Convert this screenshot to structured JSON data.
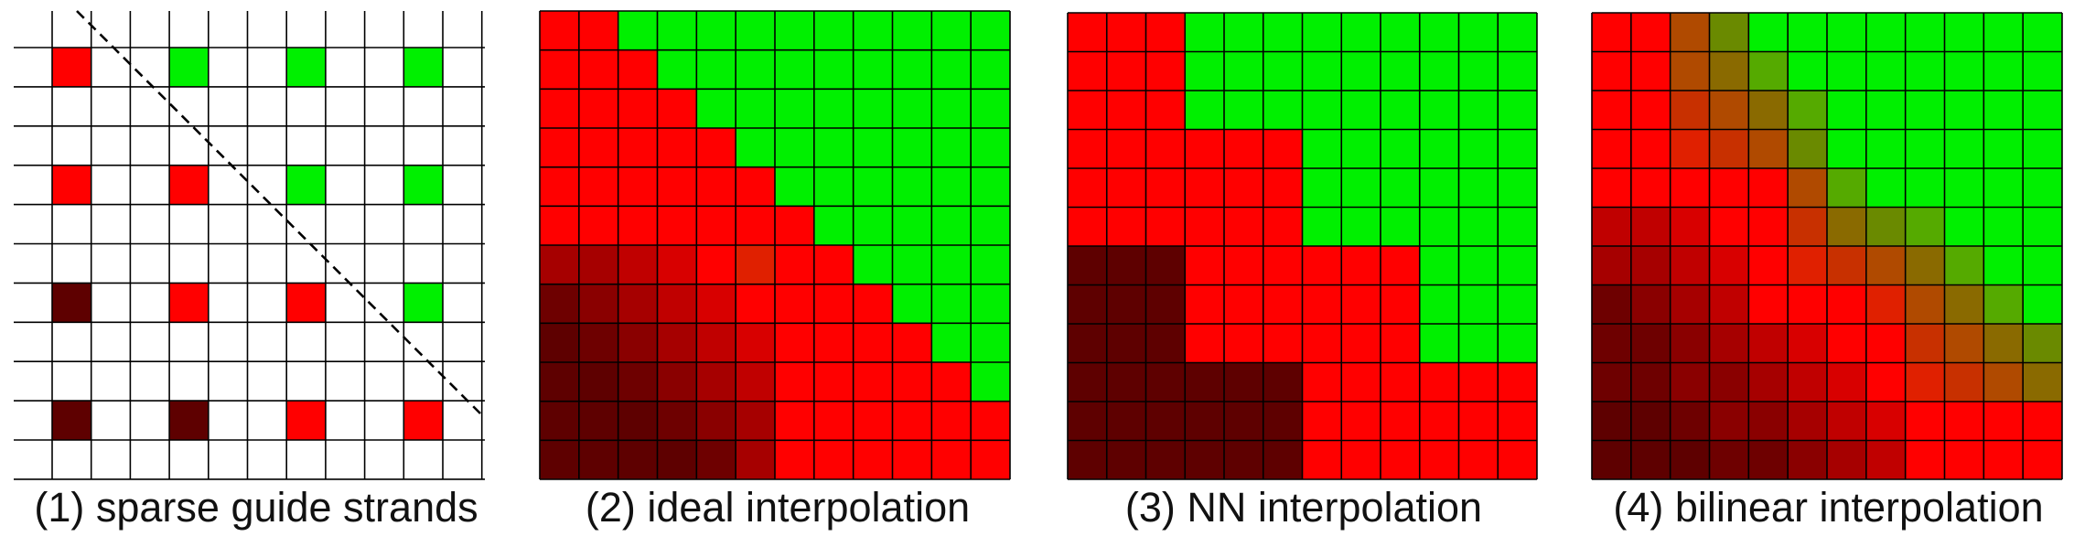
{
  "palette": {
    "dark": "#5e0000",
    "dark2": "#6e0000",
    "dark3": "#8a0000",
    "mid1": "#a60000",
    "mid2": "#c00000",
    "mid3": "#d80000",
    "red": "#ff0000",
    "orange_red": "#e02000",
    "orange": "#c83000",
    "brown": "#b04a00",
    "olive": "#8a6a00",
    "olive2": "#6a8a00",
    "lime": "#55aa00",
    "green": "#00f000",
    "white": "#ffffff"
  },
  "panels": [
    {
      "id": "sparse",
      "caption": "(1) sparse guide strands",
      "rows": 12,
      "cols": 12,
      "guides": [
        {
          "row": 1,
          "col": 1,
          "color": "red"
        },
        {
          "row": 1,
          "col": 4,
          "color": "green"
        },
        {
          "row": 1,
          "col": 7,
          "color": "green"
        },
        {
          "row": 1,
          "col": 10,
          "color": "green"
        },
        {
          "row": 4,
          "col": 1,
          "color": "red"
        },
        {
          "row": 4,
          "col": 4,
          "color": "red"
        },
        {
          "row": 4,
          "col": 7,
          "color": "green"
        },
        {
          "row": 4,
          "col": 10,
          "color": "green"
        },
        {
          "row": 7,
          "col": 1,
          "color": "dark"
        },
        {
          "row": 7,
          "col": 4,
          "color": "red"
        },
        {
          "row": 7,
          "col": 7,
          "color": "red"
        },
        {
          "row": 7,
          "col": 10,
          "color": "green"
        },
        {
          "row": 10,
          "col": 1,
          "color": "dark"
        },
        {
          "row": 10,
          "col": 4,
          "color": "dark"
        },
        {
          "row": 10,
          "col": 7,
          "color": "red"
        },
        {
          "row": 10,
          "col": 10,
          "color": "red"
        }
      ]
    },
    {
      "id": "ideal",
      "caption": "(2) ideal interpolation",
      "rows": 12,
      "cols": 12,
      "cells": [
        [
          "red",
          "red",
          "green",
          "green",
          "green",
          "green",
          "green",
          "green",
          "green",
          "green",
          "green",
          "green"
        ],
        [
          "red",
          "red",
          "red",
          "green",
          "green",
          "green",
          "green",
          "green",
          "green",
          "green",
          "green",
          "green"
        ],
        [
          "red",
          "red",
          "red",
          "red",
          "green",
          "green",
          "green",
          "green",
          "green",
          "green",
          "green",
          "green"
        ],
        [
          "red",
          "red",
          "red",
          "red",
          "red",
          "green",
          "green",
          "green",
          "green",
          "green",
          "green",
          "green"
        ],
        [
          "red",
          "red",
          "red",
          "red",
          "red",
          "red",
          "green",
          "green",
          "green",
          "green",
          "green",
          "green"
        ],
        [
          "red",
          "red",
          "red",
          "red",
          "red",
          "red",
          "red",
          "green",
          "green",
          "green",
          "green",
          "green"
        ],
        [
          "mid1",
          "mid1",
          "mid2",
          "mid3",
          "red",
          "orange_red",
          "red",
          "red",
          "green",
          "green",
          "green",
          "green"
        ],
        [
          "dark2",
          "dark3",
          "mid1",
          "mid2",
          "mid3",
          "red",
          "red",
          "red",
          "red",
          "green",
          "green",
          "green"
        ],
        [
          "dark",
          "dark2",
          "dark3",
          "mid1",
          "mid2",
          "mid3",
          "red",
          "red",
          "red",
          "red",
          "green",
          "green"
        ],
        [
          "dark",
          "dark",
          "dark2",
          "dark3",
          "mid1",
          "mid2",
          "red",
          "red",
          "red",
          "red",
          "red",
          "green"
        ],
        [
          "dark",
          "dark",
          "dark",
          "dark2",
          "dark3",
          "mid1",
          "red",
          "red",
          "red",
          "red",
          "red",
          "red"
        ],
        [
          "dark",
          "dark",
          "dark",
          "dark",
          "dark2",
          "mid1",
          "red",
          "red",
          "red",
          "red",
          "red",
          "red"
        ]
      ]
    },
    {
      "id": "nn",
      "caption": "(3) NN interpolation",
      "rows": 12,
      "cols": 12,
      "cells": [
        [
          "red",
          "red",
          "red",
          "green",
          "green",
          "green",
          "green",
          "green",
          "green",
          "green",
          "green",
          "green"
        ],
        [
          "red",
          "red",
          "red",
          "green",
          "green",
          "green",
          "green",
          "green",
          "green",
          "green",
          "green",
          "green"
        ],
        [
          "red",
          "red",
          "red",
          "green",
          "green",
          "green",
          "green",
          "green",
          "green",
          "green",
          "green",
          "green"
        ],
        [
          "red",
          "red",
          "red",
          "red",
          "red",
          "red",
          "green",
          "green",
          "green",
          "green",
          "green",
          "green"
        ],
        [
          "red",
          "red",
          "red",
          "red",
          "red",
          "red",
          "green",
          "green",
          "green",
          "green",
          "green",
          "green"
        ],
        [
          "red",
          "red",
          "red",
          "red",
          "red",
          "red",
          "green",
          "green",
          "green",
          "green",
          "green",
          "green"
        ],
        [
          "dark",
          "dark",
          "dark",
          "red",
          "red",
          "red",
          "red",
          "red",
          "red",
          "green",
          "green",
          "green"
        ],
        [
          "dark",
          "dark",
          "dark",
          "red",
          "red",
          "red",
          "red",
          "red",
          "red",
          "green",
          "green",
          "green"
        ],
        [
          "dark",
          "dark",
          "dark",
          "red",
          "red",
          "red",
          "red",
          "red",
          "red",
          "green",
          "green",
          "green"
        ],
        [
          "dark",
          "dark",
          "dark",
          "dark",
          "dark",
          "dark",
          "red",
          "red",
          "red",
          "red",
          "red",
          "red"
        ],
        [
          "dark",
          "dark",
          "dark",
          "dark",
          "dark",
          "dark",
          "red",
          "red",
          "red",
          "red",
          "red",
          "red"
        ],
        [
          "dark",
          "dark",
          "dark",
          "dark",
          "dark",
          "dark",
          "red",
          "red",
          "red",
          "red",
          "red",
          "red"
        ]
      ]
    },
    {
      "id": "bilinear",
      "caption": "(4) bilinear interpolation",
      "rows": 12,
      "cols": 12,
      "cells": [
        [
          "red",
          "red",
          "brown",
          "olive2",
          "green",
          "green",
          "green",
          "green",
          "green",
          "green",
          "green",
          "green"
        ],
        [
          "red",
          "red",
          "brown",
          "olive",
          "lime",
          "green",
          "green",
          "green",
          "green",
          "green",
          "green",
          "green"
        ],
        [
          "red",
          "red",
          "orange",
          "brown",
          "olive",
          "lime",
          "green",
          "green",
          "green",
          "green",
          "green",
          "green"
        ],
        [
          "red",
          "red",
          "orange_red",
          "orange",
          "brown",
          "olive2",
          "green",
          "green",
          "green",
          "green",
          "green",
          "green"
        ],
        [
          "red",
          "red",
          "red",
          "red",
          "red",
          "brown",
          "lime",
          "green",
          "green",
          "green",
          "green",
          "green"
        ],
        [
          "mid2",
          "mid2",
          "mid3",
          "red",
          "red",
          "orange",
          "olive",
          "olive2",
          "lime",
          "green",
          "green",
          "green"
        ],
        [
          "mid1",
          "mid1",
          "mid2",
          "mid3",
          "red",
          "orange_red",
          "orange",
          "brown",
          "olive",
          "lime",
          "green",
          "green"
        ],
        [
          "dark2",
          "dark3",
          "mid1",
          "mid2",
          "red",
          "red",
          "red",
          "orange_red",
          "brown",
          "olive",
          "lime",
          "green"
        ],
        [
          "dark2",
          "dark2",
          "dark3",
          "mid1",
          "mid2",
          "mid3",
          "red",
          "red",
          "orange",
          "brown",
          "olive",
          "olive2"
        ],
        [
          "dark2",
          "dark2",
          "dark3",
          "dark3",
          "mid1",
          "mid2",
          "mid3",
          "red",
          "orange_red",
          "orange",
          "brown",
          "olive"
        ],
        [
          "dark",
          "dark",
          "dark2",
          "dark3",
          "dark3",
          "mid1",
          "mid2",
          "mid3",
          "red",
          "red",
          "red",
          "red"
        ],
        [
          "dark",
          "dark",
          "dark",
          "dark2",
          "dark2",
          "dark3",
          "mid1",
          "mid2",
          "red",
          "red",
          "red",
          "red"
        ]
      ]
    }
  ]
}
